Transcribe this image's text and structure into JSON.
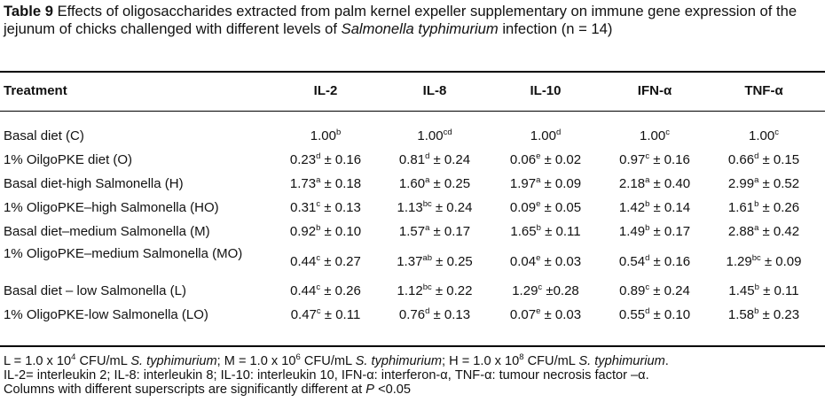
{
  "caption": {
    "label": "Table 9",
    "text_1": " Effects of oligosaccharides extracted from palm kernel expeller supplementary on immune gene expression of the jejunum of chicks challenged with different levels of ",
    "italic": "Salmonella typhimurium",
    "text_2": " infection (n = 14)"
  },
  "columns": [
    "Treatment",
    "IL-2",
    "IL-8",
    "IL-10",
    "IFN-α",
    "TNF-α"
  ],
  "rows": [
    {
      "label": "Basal diet (C)",
      "cells": [
        {
          "v": "1.00",
          "s": "b",
          "e": ""
        },
        {
          "v": "1.00",
          "s": "cd",
          "e": ""
        },
        {
          "v": "1.00",
          "s": "d",
          "e": ""
        },
        {
          "v": "1.00",
          "s": "c",
          "e": ""
        },
        {
          "v": "1.00",
          "s": "c",
          "e": ""
        }
      ]
    },
    {
      "label": "1% OilgoPKE diet (O)",
      "cells": [
        {
          "v": "0.23",
          "s": "d",
          "e": " ± 0.16"
        },
        {
          "v": "0.81",
          "s": "d",
          "e": " ± 0.24"
        },
        {
          "v": "0.06",
          "s": "e",
          "e": " ± 0.02"
        },
        {
          "v": "0.97",
          "s": "c",
          "e": " ± 0.16"
        },
        {
          "v": "0.66",
          "s": "d",
          "e": " ± 0.15"
        }
      ]
    },
    {
      "label": "Basal diet-high Salmonella (H)",
      "cells": [
        {
          "v": "1.73",
          "s": "a",
          "e": " ± 0.18"
        },
        {
          "v": "1.60",
          "s": "a",
          "e": " ± 0.25"
        },
        {
          "v": "1.97",
          "s": "a",
          "e": " ± 0.09"
        },
        {
          "v": "2.18",
          "s": "a",
          "e": " ± 0.40"
        },
        {
          "v": "2.99",
          "s": "a",
          "e": " ± 0.52"
        }
      ]
    },
    {
      "label": "1% OligoPKE–high Salmonella (HO)",
      "cells": [
        {
          "v": "0.31",
          "s": "c",
          "e": " ± 0.13"
        },
        {
          "v": "1.13",
          "s": "bc",
          "e": " ± 0.24"
        },
        {
          "v": "0.09",
          "s": "e",
          "e": " ± 0.05"
        },
        {
          "v": "1.42",
          "s": "b",
          "e": " ± 0.14"
        },
        {
          "v": "1.61",
          "s": "b",
          "e": " ± 0.26"
        }
      ]
    },
    {
      "label": "Basal diet–medium Salmonella (M)",
      "cells": [
        {
          "v": "0.92",
          "s": "b",
          "e": " ± 0.10"
        },
        {
          "v": "1.57",
          "s": "a",
          "e": " ± 0.17"
        },
        {
          "v": "1.65",
          "s": "b",
          "e": " ± 0.11"
        },
        {
          "v": "1.49",
          "s": "b",
          "e": " ± 0.17"
        },
        {
          "v": "2.88",
          "s": "a",
          "e": " ± 0.42"
        }
      ]
    },
    {
      "label": "1% OligoPKE–medium Salmonella (MO)",
      "cells": [
        {
          "v": "0.44",
          "s": "c",
          "e": " ± 0.27"
        },
        {
          "v": "1.37",
          "s": "ab",
          "e": " ± 0.25"
        },
        {
          "v": "0.04",
          "s": "e",
          "e": " ± 0.03"
        },
        {
          "v": "0.54",
          "s": "d",
          "e": " ± 0.16"
        },
        {
          "v": "1.29",
          "s": "bc",
          "e": " ± 0.09"
        }
      ]
    },
    {
      "label": "Basal diet – low Salmonella (L)",
      "cells": [
        {
          "v": "0.44",
          "s": "c",
          "e": " ± 0.26"
        },
        {
          "v": "1.12",
          "s": "bc",
          "e": " ± 0.22"
        },
        {
          "v": "1.29",
          "s": "c",
          "e": " ±0.28"
        },
        {
          "v": "0.89",
          "s": "c",
          "e": " ± 0.24"
        },
        {
          "v": "1.45",
          "s": "b",
          "e": " ± 0.11"
        }
      ]
    },
    {
      "label": "1% OligoPKE-low Salmonella (LO)",
      "cells": [
        {
          "v": "0.47",
          "s": "c",
          "e": " ± 0.11"
        },
        {
          "v": "0.76",
          "s": "d",
          "e": " ± 0.13"
        },
        {
          "v": "0.07",
          "s": "e",
          "e": " ± 0.03"
        },
        {
          "v": "0.55",
          "s": "d",
          "e": " ± 0.10"
        },
        {
          "v": "1.58",
          "s": "b",
          "e": " ± 0.23"
        }
      ]
    }
  ],
  "footnote": {
    "line1": [
      {
        "t": "L = 1.0 x 10"
      },
      {
        "sup": "4"
      },
      {
        "t": " CFU/mL "
      },
      {
        "i": "S. typhimurium"
      },
      {
        "t": "; M = 1.0 x 10"
      },
      {
        "sup": "6"
      },
      {
        "t": " CFU/mL "
      },
      {
        "i": "S. typhimurium"
      },
      {
        "t": "; H = 1.0 x 10"
      },
      {
        "sup": "8"
      },
      {
        "t": " CFU/mL "
      },
      {
        "i": "S. typhimurium"
      },
      {
        "t": "."
      }
    ],
    "line2": "IL-2= interleukin 2; IL-8: interleukin 8; IL-10: interleukin 10, IFN-α: interferon-α, TNF-α: tumour necrosis factor –α.",
    "line3_a": "Columns with different superscripts are significantly different at ",
    "line3_p": "P",
    "line3_b": " <0.05"
  }
}
